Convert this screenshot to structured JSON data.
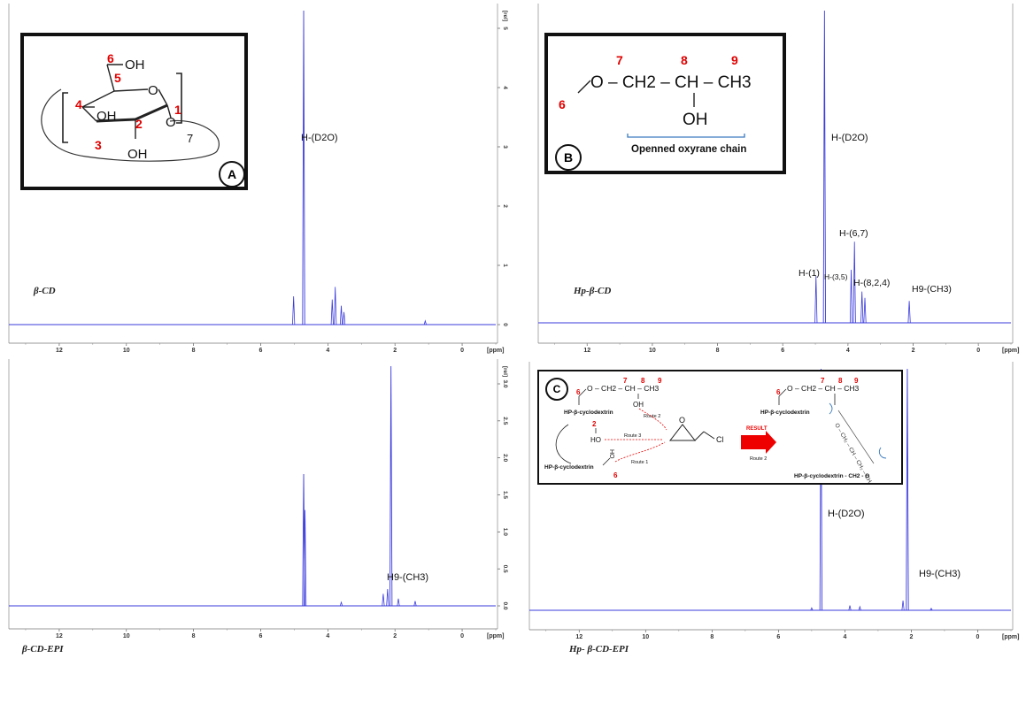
{
  "chart_data": [
    {
      "type": "line",
      "sample_label": "β-CD",
      "x_unit": "[ppm]",
      "y_unit": "[rel]",
      "xlim": [
        13.5,
        -1.0
      ],
      "x_ticks": [
        "12",
        "10",
        "8",
        "6",
        "4",
        "2",
        "0"
      ],
      "y_ticks": [
        "0",
        "1",
        "2",
        "3",
        "4",
        "5"
      ],
      "peaks": [
        {
          "ppm": 5.02,
          "intensity": 0.09
        },
        {
          "ppm": 4.72,
          "intensity": 1.0,
          "label": "H-(D2O)"
        },
        {
          "ppm": 3.87,
          "intensity": 0.08
        },
        {
          "ppm": 3.78,
          "intensity": 0.12
        },
        {
          "ppm": 3.6,
          "intensity": 0.06
        },
        {
          "ppm": 3.52,
          "intensity": 0.04
        },
        {
          "ppm": 1.1,
          "intensity": 0.012
        }
      ],
      "inset": {
        "badge": "A",
        "atom_numbers": [
          "6",
          "5",
          "4",
          "3",
          "2",
          "1"
        ],
        "groups": [
          "OH",
          "OH",
          "OH",
          "O",
          "O"
        ],
        "repeat": "7"
      }
    },
    {
      "type": "line",
      "sample_label": "Hp-β-CD",
      "x_unit": "[ppm]",
      "xlim": [
        13.5,
        -1.0
      ],
      "x_ticks": [
        "12",
        "10",
        "8",
        "6",
        "4",
        "2",
        "0"
      ],
      "peaks": [
        {
          "ppm": 4.98,
          "intensity": 0.15,
          "label": "H-(1)"
        },
        {
          "ppm": 4.72,
          "intensity": 1.0,
          "label": "H-(D2O)"
        },
        {
          "ppm": 3.9,
          "intensity": 0.17,
          "label": "H-(3,5)"
        },
        {
          "ppm": 3.8,
          "intensity": 0.26,
          "label": "H-(6,7)"
        },
        {
          "ppm": 3.57,
          "intensity": 0.1,
          "label": "H-(8,2,4)"
        },
        {
          "ppm": 3.48,
          "intensity": 0.08
        },
        {
          "ppm": 2.12,
          "intensity": 0.07,
          "label": "H9-(CH3)"
        }
      ],
      "inset": {
        "badge": "B",
        "atom_numbers": [
          "7",
          "8",
          "9",
          "6"
        ],
        "formula": "O – CH2 – CH – CH3",
        "group": "OH",
        "caption": "Openned oxyrane chain"
      }
    },
    {
      "type": "line",
      "sample_label": "β-CD-EPI",
      "x_unit": "[ppm]",
      "y_unit": "[rel]",
      "xlim": [
        13.5,
        -1.0
      ],
      "x_ticks": [
        "12",
        "10",
        "8",
        "6",
        "4",
        "2",
        "0"
      ],
      "y_ticks": [
        "0.0",
        "0.5",
        "1.0",
        "1.5",
        "2.0",
        "2.5",
        "3.0"
      ],
      "peaks": [
        {
          "ppm": 4.72,
          "intensity": 0.55
        },
        {
          "ppm": 4.68,
          "intensity": 0.4
        },
        {
          "ppm": 3.6,
          "intensity": 0.015
        },
        {
          "ppm": 2.35,
          "intensity": 0.05
        },
        {
          "ppm": 2.22,
          "intensity": 0.07
        },
        {
          "ppm": 2.12,
          "intensity": 1.0,
          "label": "H9-(CH3)"
        },
        {
          "ppm": 1.9,
          "intensity": 0.03
        },
        {
          "ppm": 1.4,
          "intensity": 0.02
        }
      ]
    },
    {
      "type": "line",
      "sample_label": "Hp- β-CD-EPI",
      "x_unit": "[ppm]",
      "xlim": [
        13.5,
        -1.0
      ],
      "x_ticks": [
        "12",
        "10",
        "8",
        "6",
        "4",
        "2",
        "0"
      ],
      "peaks": [
        {
          "ppm": 5.0,
          "intensity": 0.01
        },
        {
          "ppm": 4.72,
          "intensity": 1.0,
          "label": "H-(D2O)"
        },
        {
          "ppm": 3.85,
          "intensity": 0.02
        },
        {
          "ppm": 3.55,
          "intensity": 0.015
        },
        {
          "ppm": 2.25,
          "intensity": 0.04
        },
        {
          "ppm": 2.12,
          "intensity": 1.0,
          "label": "H9-(CH3)"
        },
        {
          "ppm": 1.4,
          "intensity": 0.008
        }
      ],
      "inset": {
        "badge": "C",
        "atom_numbers": [
          "7",
          "8",
          "9",
          "6",
          "2",
          "6",
          "7",
          "8",
          "9",
          "6"
        ],
        "reactant": "HP-β-cyclodextrin",
        "reactant_bottom": "HP-β-cyclodextrin",
        "routes": [
          "Route 2",
          "Route 3",
          "Route 1"
        ],
        "result": "RESULT",
        "result_route": "Route 2",
        "product_left": "HP-β-cyclodextrin",
        "product_bottom": "HP-β-cyclodextrin - CH2 - O",
        "formula": "O – CH2 – CH – CH3",
        "cl": "Cl",
        "group_oh": "OH",
        "group_ho": "HO"
      }
    }
  ]
}
